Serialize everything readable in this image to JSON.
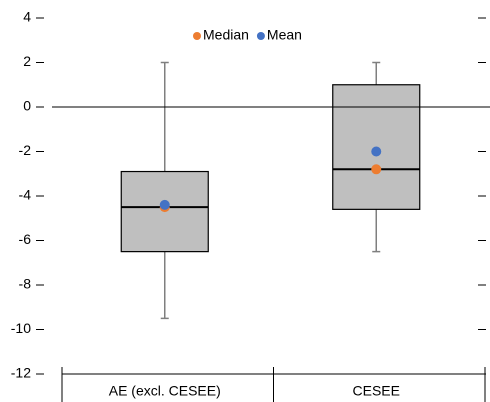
{
  "chart_data": {
    "type": "box",
    "categories": [
      "AE (excl. CESEE)",
      "CESEE"
    ],
    "boxes": [
      {
        "min": -9.5,
        "q1": -6.5,
        "median": -4.5,
        "q3": -2.9,
        "max": 2
      },
      {
        "min": -6.5,
        "q1": -4.6,
        "median": -2.8,
        "q3": 1.0,
        "max": 2
      }
    ],
    "box_color": "#bfbfbf",
    "series": [
      {
        "name": "Median",
        "color": "#ed7d31",
        "values": [
          -4.5,
          -2.8
        ]
      },
      {
        "name": "Mean",
        "color": "#4472c4",
        "values": [
          -4.4,
          -2.0
        ]
      }
    ],
    "ylim": [
      -12,
      4
    ],
    "yticks": [
      -12,
      -10,
      -8,
      -6,
      -4,
      -2,
      0,
      2,
      4
    ],
    "legend": "top"
  }
}
